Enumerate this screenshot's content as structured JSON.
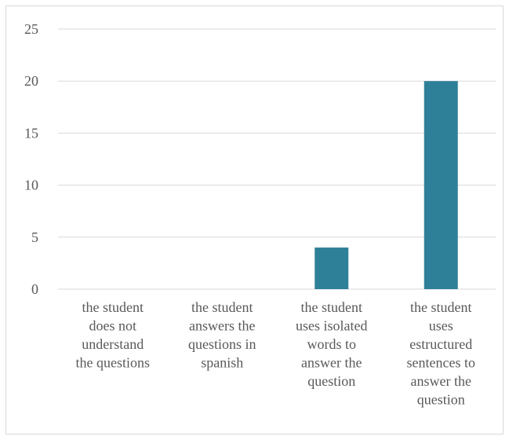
{
  "chart_data": {
    "type": "bar",
    "categories": [
      [
        "the student",
        "does not",
        "understand",
        "the questions"
      ],
      [
        "the student",
        "answers the",
        "questions in",
        "spanish"
      ],
      [
        "the student",
        "uses isolated",
        "words to",
        "answer the",
        "question"
      ],
      [
        "the student",
        "uses",
        "estructured",
        "sentences to",
        "answer the",
        "question"
      ]
    ],
    "values": [
      0,
      0,
      4,
      20
    ],
    "ylim": [
      0,
      25
    ],
    "yticks": [
      0,
      5,
      10,
      15,
      20,
      25
    ],
    "title": "",
    "xlabel": "",
    "ylabel": "",
    "grid": true,
    "legend": "none",
    "colors": {
      "bar": "#2e8099",
      "grid": "#d9d9d9",
      "text": "#595959",
      "frame": "#d9d9d9"
    }
  }
}
